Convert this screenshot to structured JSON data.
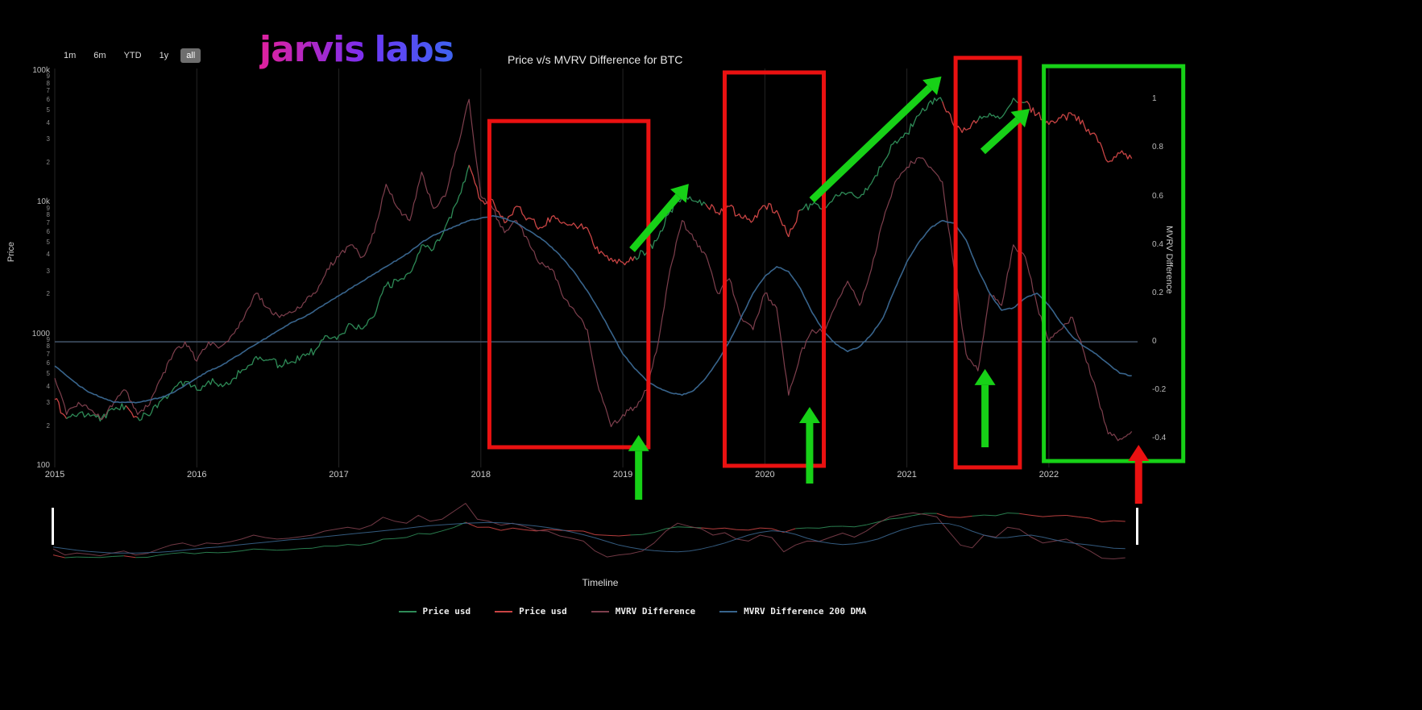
{
  "theme": {
    "background": "#000000",
    "annotation_green": "#17d117",
    "annotation_red": "#ea1111",
    "zero_line": "#44566b"
  },
  "header": {
    "range_buttons": [
      {
        "label": "1m",
        "selected": false
      },
      {
        "label": "6m",
        "selected": false
      },
      {
        "label": "YTD",
        "selected": false
      },
      {
        "label": "1y",
        "selected": false
      },
      {
        "label": "all",
        "selected": true
      }
    ],
    "logo": {
      "part1": "jarvis",
      "part2": "labs"
    },
    "title": "Price v/s MVRV Difference for BTC"
  },
  "axes": {
    "left_label": "Price",
    "right_label": "MVRV Difference",
    "x_label": "Timeline",
    "price_ticks": [
      {
        "label": "100k",
        "value": 100000
      },
      {
        "label": "10k",
        "value": 10000
      },
      {
        "label": "1000",
        "value": 1000
      },
      {
        "label": "100",
        "value": 100
      }
    ],
    "minor_tick_labels": [
      "9",
      "8",
      "7",
      "6",
      "5",
      "4",
      "3",
      "2"
    ],
    "mvrv_ticks": [
      {
        "label": "1",
        "value": 1
      },
      {
        "label": "0.8",
        "value": 0.8
      },
      {
        "label": "0.6",
        "value": 0.6
      },
      {
        "label": "0.4",
        "value": 0.4
      },
      {
        "label": "0.2",
        "value": 0.2
      },
      {
        "label": "0",
        "value": 0
      },
      {
        "label": "-0.2",
        "value": -0.2
      },
      {
        "label": "-0.4",
        "value": -0.4
      }
    ],
    "year_ticks": [
      "2015",
      "2016",
      "2017",
      "2018",
      "2019",
      "2020",
      "2021",
      "2022"
    ]
  },
  "legend": [
    {
      "label": "Price usd",
      "color": "#2e8b57"
    },
    {
      "label": "Price usd",
      "color": "#c94444"
    },
    {
      "label": "MVRV Difference",
      "color": "#7e3f4d"
    },
    {
      "label": "MVRV Difference 200 DMA",
      "color": "#38648c"
    }
  ],
  "chart_data": {
    "type": "line",
    "title": "Price v/s MVRV Difference for BTC",
    "x_unit": "decimal_year",
    "x_range": [
      2015.0,
      2022.67
    ],
    "price_axis_range": [
      100,
      100000
    ],
    "price_axis_scale": "log",
    "mvrv_axis_visible_ticks": [
      -0.4,
      1
    ],
    "grid": "vertical-year-lines and zero-line only",
    "legend_position": "bottom-center",
    "x": [
      2015.0,
      2015.083,
      2015.167,
      2015.25,
      2015.333,
      2015.417,
      2015.5,
      2015.583,
      2015.667,
      2015.75,
      2015.833,
      2015.917,
      2016.0,
      2016.083,
      2016.167,
      2016.25,
      2016.333,
      2016.417,
      2016.5,
      2016.583,
      2016.667,
      2016.75,
      2016.833,
      2016.917,
      2017.0,
      2017.083,
      2017.167,
      2017.25,
      2017.333,
      2017.417,
      2017.5,
      2017.583,
      2017.667,
      2017.75,
      2017.833,
      2017.917,
      2018.0,
      2018.083,
      2018.167,
      2018.25,
      2018.333,
      2018.417,
      2018.5,
      2018.583,
      2018.667,
      2018.75,
      2018.833,
      2018.917,
      2019.0,
      2019.083,
      2019.167,
      2019.25,
      2019.333,
      2019.417,
      2019.5,
      2019.583,
      2019.667,
      2019.75,
      2019.833,
      2019.917,
      2020.0,
      2020.083,
      2020.167,
      2020.25,
      2020.333,
      2020.417,
      2020.5,
      2020.583,
      2020.667,
      2020.75,
      2020.833,
      2020.917,
      2021.0,
      2021.083,
      2021.167,
      2021.25,
      2021.333,
      2021.417,
      2021.5,
      2021.583,
      2021.667,
      2021.75,
      2021.833,
      2021.917,
      2022.0,
      2022.083,
      2022.167,
      2022.25,
      2022.333,
      2022.417,
      2022.5,
      2022.583
    ],
    "series": [
      {
        "name": "Price usd",
        "axis": "price",
        "colors": {
          "g": "#2e8b57",
          "r": "#c94444"
        },
        "values": [
          315,
          225,
          245,
          235,
          230,
          262,
          283,
          230,
          236,
          310,
          375,
          430,
          370,
          437,
          415,
          448,
          530,
          670,
          625,
          575,
          610,
          700,
          742,
          960,
          965,
          1180,
          1080,
          1350,
          2300,
          2480,
          2870,
          4700,
          4350,
          6450,
          9900,
          19000,
          10200,
          10400,
          6900,
          9240,
          7500,
          6400,
          7730,
          7000,
          6600,
          6320,
          4020,
          3740,
          3460,
          3850,
          4100,
          5350,
          8570,
          10800,
          10100,
          9600,
          8300,
          9200,
          7570,
          7190,
          9350,
          8600,
          5400,
          8660,
          9460,
          9140,
          11350,
          11650,
          10780,
          13800,
          19700,
          29000,
          33100,
          45200,
          58800,
          57800,
          37300,
          35000,
          41500,
          47100,
          43800,
          61400,
          57000,
          46200,
          38500,
          43200,
          45500,
          37600,
          31800,
          20000,
          23300,
          21300
        ],
        "point_colors": [
          "r",
          "r",
          "g",
          "g",
          "g",
          "g",
          "g",
          "r",
          "g",
          "g",
          "g",
          "g",
          "g",
          "g",
          "g",
          "g",
          "g",
          "g",
          "g",
          "g",
          "g",
          "g",
          "g",
          "g",
          "g",
          "g",
          "g",
          "g",
          "g",
          "g",
          "g",
          "g",
          "g",
          "g",
          "g",
          "g",
          "r",
          "r",
          "r",
          "r",
          "r",
          "r",
          "r",
          "r",
          "r",
          "r",
          "r",
          "r",
          "r",
          "r",
          "g",
          "g",
          "g",
          "g",
          "g",
          "g",
          "r",
          "r",
          "r",
          "r",
          "r",
          "r",
          "r",
          "r",
          "g",
          "g",
          "g",
          "g",
          "g",
          "g",
          "g",
          "g",
          "g",
          "g",
          "g",
          "g",
          "r",
          "r",
          "r",
          "g",
          "g",
          "g",
          "g",
          "r",
          "r",
          "r",
          "r",
          "r",
          "r",
          "r",
          "r",
          "r"
        ]
      },
      {
        "name": "MVRV Difference",
        "axis": "mvrv",
        "color": "#7e3f4d",
        "values": [
          -0.15,
          -0.3,
          -0.25,
          -0.28,
          -0.32,
          -0.25,
          -0.2,
          -0.3,
          -0.26,
          -0.15,
          -0.05,
          0.0,
          -0.08,
          0.0,
          -0.02,
          0.03,
          0.1,
          0.2,
          0.14,
          0.1,
          0.12,
          0.16,
          0.2,
          0.3,
          0.35,
          0.4,
          0.35,
          0.45,
          0.65,
          0.55,
          0.5,
          0.7,
          0.55,
          0.6,
          0.8,
          1.0,
          0.6,
          0.55,
          0.45,
          0.5,
          0.42,
          0.32,
          0.3,
          0.18,
          0.12,
          0.05,
          -0.2,
          -0.35,
          -0.3,
          -0.27,
          -0.2,
          0.0,
          0.3,
          0.5,
          0.42,
          0.36,
          0.2,
          0.26,
          0.1,
          0.05,
          0.2,
          0.14,
          -0.22,
          -0.05,
          0.05,
          0.04,
          0.15,
          0.25,
          0.15,
          0.3,
          0.5,
          0.66,
          0.72,
          0.76,
          0.72,
          0.66,
          0.3,
          -0.05,
          -0.12,
          0.2,
          0.15,
          0.4,
          0.35,
          0.15,
          0.0,
          0.05,
          0.1,
          -0.05,
          -0.2,
          -0.38,
          -0.4,
          -0.37
        ]
      },
      {
        "name": "MVRV Difference 200 DMA",
        "axis": "mvrv",
        "color": "#38648c",
        "values": [
          -0.1,
          -0.14,
          -0.18,
          -0.21,
          -0.23,
          -0.25,
          -0.25,
          -0.25,
          -0.24,
          -0.23,
          -0.21,
          -0.18,
          -0.15,
          -0.12,
          -0.1,
          -0.07,
          -0.04,
          -0.01,
          0.02,
          0.05,
          0.08,
          0.1,
          0.13,
          0.16,
          0.19,
          0.22,
          0.25,
          0.28,
          0.31,
          0.34,
          0.37,
          0.41,
          0.44,
          0.46,
          0.48,
          0.5,
          0.51,
          0.52,
          0.51,
          0.49,
          0.46,
          0.43,
          0.39,
          0.34,
          0.28,
          0.21,
          0.13,
          0.04,
          -0.05,
          -0.11,
          -0.16,
          -0.19,
          -0.21,
          -0.22,
          -0.2,
          -0.15,
          -0.08,
          0.0,
          0.1,
          0.2,
          0.27,
          0.31,
          0.29,
          0.22,
          0.12,
          0.04,
          -0.01,
          -0.04,
          -0.02,
          0.03,
          0.1,
          0.22,
          0.33,
          0.41,
          0.47,
          0.5,
          0.49,
          0.42,
          0.3,
          0.2,
          0.13,
          0.14,
          0.18,
          0.2,
          0.15,
          0.08,
          0.02,
          -0.02,
          -0.05,
          -0.09,
          -0.13,
          -0.14
        ]
      }
    ],
    "annotations": {
      "coords": "fraction of plot area: x 0=left/1=right, y 0=top/1=bottom; values may slightly exceed 0-1",
      "rects": [
        {
          "name": "red-box-2018-bear",
          "color": "#ea1111",
          "x1": 0.399,
          "y1": 0.129,
          "x2": 0.545,
          "y2": 0.955
        },
        {
          "name": "red-box-2019-2020",
          "color": "#ea1111",
          "x1": 0.615,
          "y1": 0.006,
          "x2": 0.706,
          "y2": 1.002
        },
        {
          "name": "red-box-mid-2021",
          "color": "#ea1111",
          "x1": 0.827,
          "y1": -0.031,
          "x2": 0.886,
          "y2": 1.006
        },
        {
          "name": "green-box-2022",
          "color": "#17d117",
          "x1": 0.908,
          "y1": -0.01,
          "x2": 1.036,
          "y2": 0.99
        }
      ],
      "arrows": [
        {
          "name": "green-arrow-mvrv-bottom-2018",
          "color": "#17d117",
          "x1": 0.536,
          "y1": 1.088,
          "x2": 0.536,
          "y2": 0.924
        },
        {
          "name": "green-arrow-price-rally-2019",
          "color": "#17d117",
          "x1": 0.53,
          "y1": 0.455,
          "x2": 0.582,
          "y2": 0.288
        },
        {
          "name": "green-arrow-mvrv-bottom-2020",
          "color": "#17d117",
          "x1": 0.693,
          "y1": 1.047,
          "x2": 0.693,
          "y2": 0.853
        },
        {
          "name": "green-arrow-price-rally-2020",
          "color": "#17d117",
          "x1": 0.695,
          "y1": 0.329,
          "x2": 0.814,
          "y2": 0.016
        },
        {
          "name": "green-arrow-price-rally-late-2021",
          "color": "#17d117",
          "x1": 0.852,
          "y1": 0.206,
          "x2": 0.895,
          "y2": 0.098
        },
        {
          "name": "green-arrow-mvrv-bottom-2021",
          "color": "#17d117",
          "x1": 0.854,
          "y1": 0.955,
          "x2": 0.854,
          "y2": 0.757
        },
        {
          "name": "red-arrow-mvrv-bottom-2022",
          "color": "#ea1111",
          "x1": 0.995,
          "y1": 1.098,
          "x2": 0.995,
          "y2": 0.949
        }
      ]
    }
  }
}
